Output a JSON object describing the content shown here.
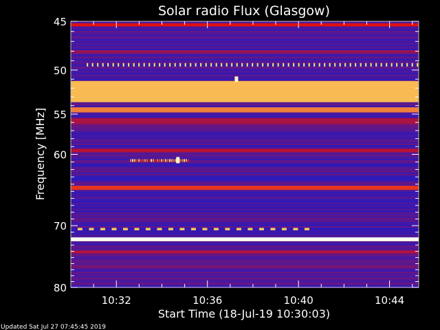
{
  "chart_data": {
    "type": "heatmap",
    "title": "Solar radio Flux (Glasgow)",
    "xlabel": "Start Time (18-Jul-19 10:30:03)",
    "ylabel": "Frequency [MHz]",
    "x_range": [
      "10:30:03",
      "10:45:20"
    ],
    "y_range": [
      45,
      80
    ],
    "y_scale": "log",
    "y_inverted": true,
    "x_ticks": [
      {
        "label": "10:32",
        "minutes": 2.0
      },
      {
        "label": "10:36",
        "minutes": 6.0
      },
      {
        "label": "10:40",
        "minutes": 10.0
      },
      {
        "label": "10:44",
        "minutes": 14.0
      }
    ],
    "y_ticks": [
      45,
      50,
      55,
      60,
      70,
      80
    ],
    "colormap": "blue-red-yellow",
    "colors": {
      "background": "#000000",
      "low": "#1a1acc",
      "mid": "#e01010",
      "high": "#ffee66",
      "peak": "#ffffee"
    },
    "bands": [
      {
        "from_mhz": 45.2,
        "to_mhz": 45.5,
        "level": 0.55
      },
      {
        "from_mhz": 47.9,
        "to_mhz": 48.2,
        "level": 0.35
      },
      {
        "from_mhz": 51.2,
        "to_mhz": 53.6,
        "level": 0.78
      },
      {
        "from_mhz": 54.2,
        "to_mhz": 54.8,
        "level": 0.7
      },
      {
        "from_mhz": 55.5,
        "to_mhz": 56.2,
        "level": 0.4
      },
      {
        "from_mhz": 59.3,
        "to_mhz": 59.7,
        "level": 0.45
      },
      {
        "from_mhz": 64.2,
        "to_mhz": 64.8,
        "level": 0.6
      },
      {
        "from_mhz": 71.8,
        "to_mhz": 72.4,
        "level": 1.0
      },
      {
        "from_mhz": 73.9,
        "to_mhz": 74.3,
        "level": 0.45
      },
      {
        "from_mhz": 76.4,
        "to_mhz": 76.6,
        "level": 0.3
      }
    ],
    "features": [
      {
        "kind": "dotted-line",
        "mhz": 49.4,
        "from_min": 0.7,
        "to_min": 15.2,
        "level": 0.85
      },
      {
        "kind": "dashed-line",
        "mhz": 70.5,
        "from_min": 0.3,
        "to_min": 10.6,
        "level": 0.8
      },
      {
        "kind": "burst",
        "mhz": 60.8,
        "from_min": 2.6,
        "to_min": 5.2,
        "level": 0.9
      },
      {
        "kind": "spike",
        "mhz": 51.0,
        "from_min": 7.2,
        "to_min": 7.35,
        "level": 0.95
      }
    ]
  },
  "footer": {
    "updated": "Updated Sat Jul 27 07:45:45 2019"
  }
}
